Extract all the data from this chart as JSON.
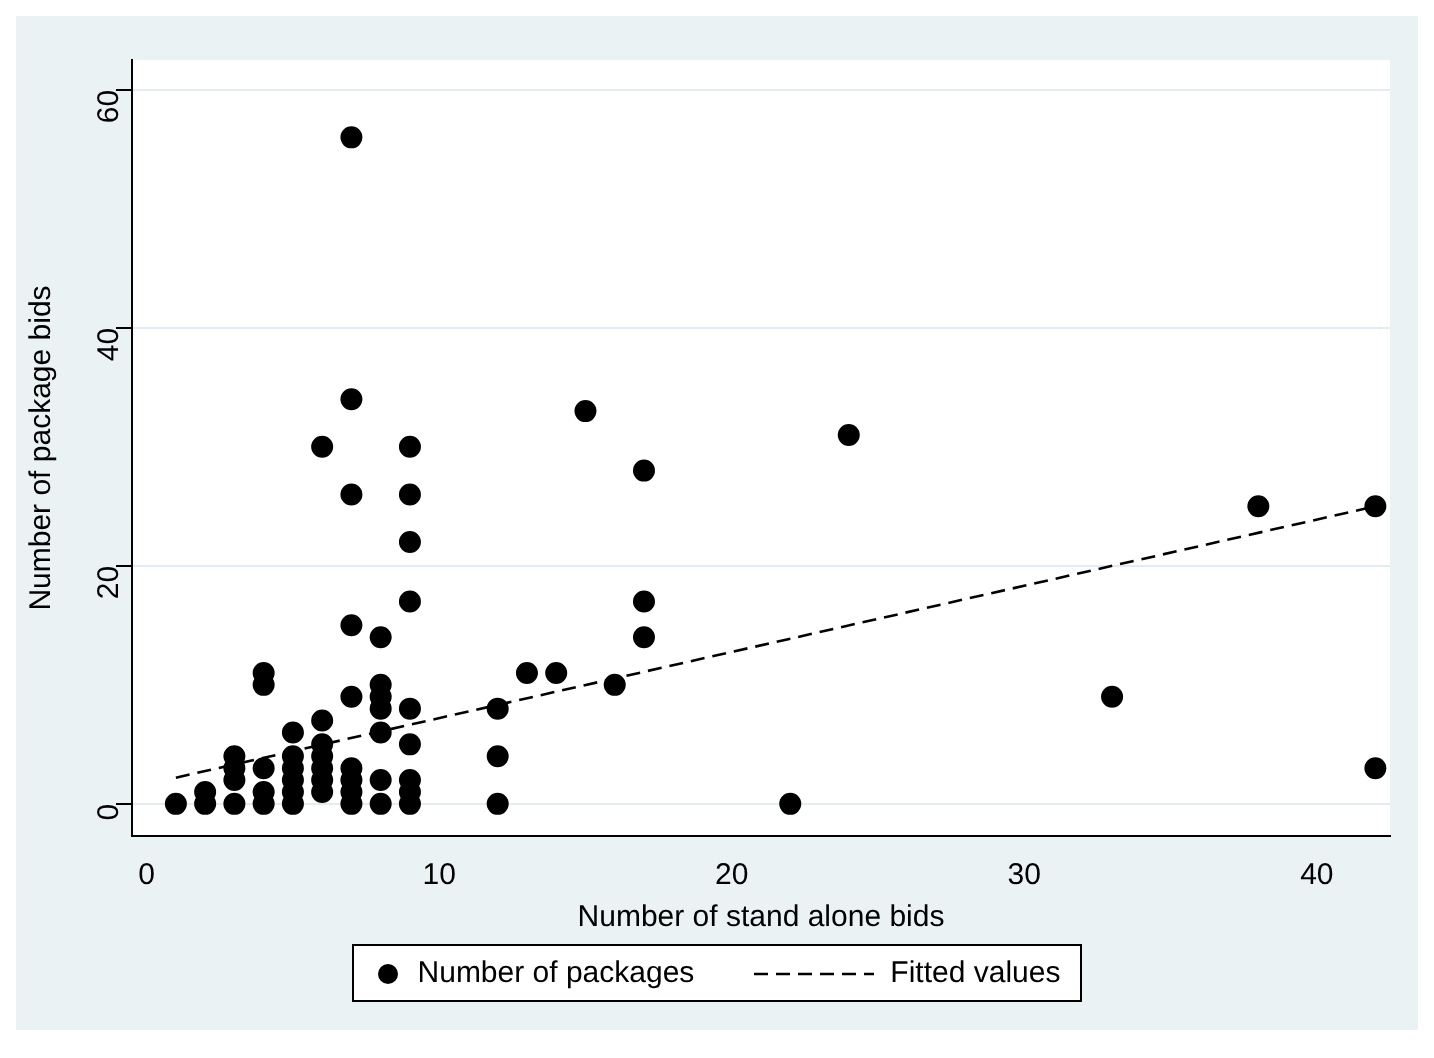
{
  "chart_data": {
    "type": "scatter",
    "xlabel": "Number of stand alone bids",
    "ylabel": "Number of package bids",
    "xlim": [
      -0.5,
      42.5
    ],
    "xticks": [
      0,
      10,
      20,
      30,
      40
    ],
    "ylim": [
      -2.7,
      62.5
    ],
    "yticks": [
      0,
      20,
      40,
      60
    ],
    "grid": "y",
    "legend": "bottom",
    "marker": "circle",
    "series": [
      {
        "name": "Number of packages",
        "color": "#000000",
        "x": [
          1,
          2,
          2,
          3,
          3,
          3,
          3,
          4,
          4,
          4,
          4,
          4,
          5,
          5,
          5,
          5,
          5,
          5,
          6,
          6,
          6,
          6,
          6,
          6,
          6,
          7,
          7,
          7,
          7,
          7,
          7,
          7,
          7,
          7,
          8,
          8,
          8,
          8,
          8,
          8,
          8,
          9,
          9,
          9,
          9,
          9,
          9,
          9,
          9,
          9,
          12,
          12,
          12,
          13,
          14,
          15,
          16,
          17,
          17,
          17,
          22,
          24,
          33,
          38,
          42,
          42
        ],
        "values": [
          0,
          0,
          1,
          0,
          2,
          3,
          4,
          0,
          1,
          3,
          10,
          11,
          0,
          1,
          2,
          3,
          4,
          6,
          1,
          2,
          3,
          4,
          5,
          7,
          30,
          0,
          1,
          2,
          3,
          9,
          15,
          26,
          34,
          56,
          0,
          2,
          6,
          8,
          9,
          10,
          14,
          0,
          1,
          2,
          5,
          8,
          17,
          22,
          26,
          30,
          0,
          4,
          8,
          11,
          11,
          33,
          10,
          14,
          17,
          28,
          0,
          31,
          9,
          25,
          25,
          3
        ]
      },
      {
        "type": "line",
        "name": "Fitted values",
        "color": "#000000",
        "line_style": "dashed",
        "marker": "none",
        "x": [
          1,
          42
        ],
        "values": [
          2.2,
          25
        ]
      }
    ]
  }
}
